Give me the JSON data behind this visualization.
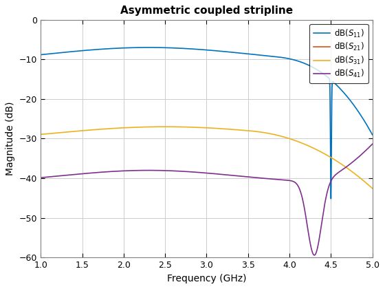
{
  "title": "Asymmetric coupled stripline",
  "xlabel": "Frequency (GHz)",
  "ylabel": "Magnitude (dB)",
  "xlim": [
    1,
    5
  ],
  "ylim": [
    -60,
    0
  ],
  "yticks": [
    0,
    -10,
    -20,
    -30,
    -40,
    -50,
    -60
  ],
  "xticks": [
    1,
    1.5,
    2,
    2.5,
    3,
    3.5,
    4,
    4.5,
    5
  ],
  "line_colors": [
    "#0072BD",
    "#D95319",
    "#EDB120",
    "#7E2F8E"
  ],
  "background_color": "#ffffff",
  "grid_color": "#cccccc"
}
